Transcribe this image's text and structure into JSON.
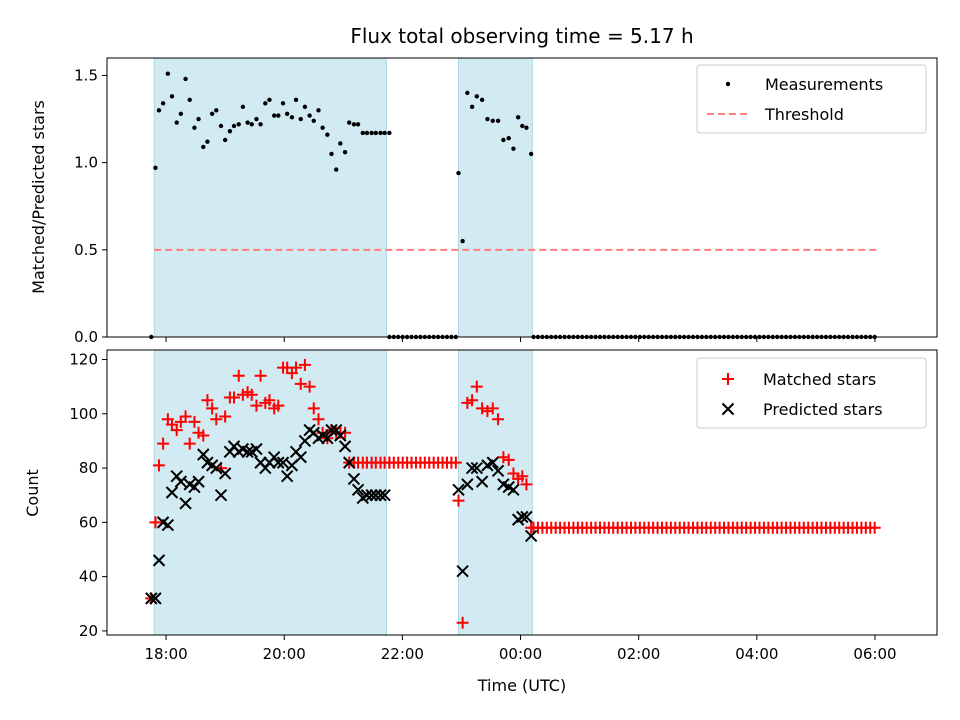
{
  "chart_data": {
    "title": "Flux total observing time = 5.17 h",
    "xlabel": "Time (UTC)",
    "x_unit": "hours since 17:00 UTC",
    "xlim": [
      17.0,
      31.05
    ],
    "xticks": [
      {
        "value": 18,
        "label": "18:00"
      },
      {
        "value": 20,
        "label": "20:00"
      },
      {
        "value": 22,
        "label": "22:00"
      },
      {
        "value": 24,
        "label": "00:00"
      },
      {
        "value": 26,
        "label": "02:00"
      },
      {
        "value": 28,
        "label": "04:00"
      },
      {
        "value": 30,
        "label": "06:00"
      }
    ],
    "observing_windows": [
      {
        "start": 17.8,
        "end": 21.73
      },
      {
        "start": 22.95,
        "end": 24.2
      }
    ],
    "window_color": "#add8e6",
    "panels": [
      {
        "id": "ratio",
        "type": "scatter",
        "ylabel": "Matched/Predicted stars",
        "ylim": [
          0,
          1.6
        ],
        "yticks": [
          {
            "value": 0,
            "label": "0.0"
          },
          {
            "value": 0.5,
            "label": "0.5"
          },
          {
            "value": 1.0,
            "label": "1.0"
          },
          {
            "value": 1.5,
            "label": "1.5"
          }
        ],
        "legend_position": "top-right",
        "threshold": {
          "name": "Threshold",
          "value": 0.5,
          "x_range": [
            17.8,
            30.03
          ],
          "color": "#ff7f7f"
        },
        "series": [
          {
            "name": "Measurements",
            "marker": "dot",
            "color": "#000000",
            "segments": [
              {
                "x": [
                  17.75,
                  17.82,
                  17.88,
                  17.95,
                  18.03,
                  18.1,
                  18.18,
                  18.25,
                  18.33,
                  18.4,
                  18.48,
                  18.55,
                  18.63,
                  18.7,
                  18.78,
                  18.85,
                  18.93,
                  19.0,
                  19.08,
                  19.15,
                  19.23,
                  19.3,
                  19.38,
                  19.45,
                  19.53,
                  19.6,
                  19.68,
                  19.75,
                  19.83,
                  19.9,
                  19.98,
                  20.05,
                  20.13,
                  20.2,
                  20.28,
                  20.35,
                  20.43,
                  20.5,
                  20.58,
                  20.65,
                  20.73,
                  20.8,
                  20.88,
                  20.95,
                  21.03,
                  21.1,
                  21.18,
                  21.25,
                  21.33,
                  21.4,
                  21.48,
                  21.55,
                  21.63,
                  21.7,
                  21.78
                ],
                "y": [
                  0,
                  0.97,
                  1.3,
                  1.34,
                  1.51,
                  1.38,
                  1.23,
                  1.28,
                  1.48,
                  1.36,
                  1.2,
                  1.25,
                  1.09,
                  1.12,
                  1.28,
                  1.3,
                  1.21,
                  1.13,
                  1.18,
                  1.21,
                  1.22,
                  1.32,
                  1.23,
                  1.22,
                  1.25,
                  1.22,
                  1.34,
                  1.36,
                  1.27,
                  1.27,
                  1.34,
                  1.28,
                  1.26,
                  1.36,
                  1.25,
                  1.32,
                  1.27,
                  1.24,
                  1.3,
                  1.2,
                  1.16,
                  1.05,
                  0.96,
                  1.11,
                  1.06,
                  1.23,
                  1.22,
                  1.22,
                  1.17,
                  1.17,
                  1.17,
                  1.17,
                  1.17,
                  1.17,
                  1.17
                ]
              },
              {
                "x": [
                  22.95,
                  23.02,
                  23.1,
                  23.18,
                  23.26,
                  23.35,
                  23.44,
                  23.53,
                  23.62,
                  23.71,
                  23.8,
                  23.88,
                  23.96,
                  24.03,
                  24.1,
                  24.18
                ],
                "y": [
                  0.94,
                  0.55,
                  1.4,
                  1.32,
                  1.38,
                  1.36,
                  1.25,
                  1.24,
                  1.24,
                  1.13,
                  1.14,
                  1.08,
                  1.26,
                  1.21,
                  1.2,
                  1.05
                ]
              }
            ],
            "zero_runs": [
              {
                "start": 21.78,
                "end": 22.92,
                "step": 0.075
              },
              {
                "start": 24.22,
                "end": 30.03,
                "step": 0.075
              }
            ]
          }
        ]
      },
      {
        "id": "counts",
        "type": "scatter",
        "ylabel": "Count",
        "ylim": [
          18.5,
          123.5
        ],
        "yticks": [
          {
            "value": 20,
            "label": "20"
          },
          {
            "value": 40,
            "label": "40"
          },
          {
            "value": 60,
            "label": "60"
          },
          {
            "value": 80,
            "label": "80"
          },
          {
            "value": 100,
            "label": "100"
          },
          {
            "value": 120,
            "label": "120"
          }
        ],
        "legend_position": "top-right",
        "series": [
          {
            "name": "Matched stars",
            "marker": "plus",
            "color": "#ff0000",
            "segments": [
              {
                "x": [
                  17.75,
                  17.82,
                  17.88,
                  17.95,
                  18.03,
                  18.1,
                  18.18,
                  18.25,
                  18.33,
                  18.4,
                  18.48,
                  18.55,
                  18.63,
                  18.7,
                  18.78,
                  18.85,
                  18.93,
                  19.0,
                  19.08,
                  19.15,
                  19.23,
                  19.3,
                  19.38,
                  19.45,
                  19.53,
                  19.6,
                  19.68,
                  19.75,
                  19.83,
                  19.9,
                  19.98,
                  20.05,
                  20.13,
                  20.2,
                  20.28,
                  20.35,
                  20.43,
                  20.5,
                  20.58,
                  20.65,
                  20.73,
                  20.8,
                  20.88,
                  20.95,
                  21.03,
                  21.1,
                  21.18,
                  21.25,
                  21.33,
                  21.4,
                  21.48,
                  21.55,
                  21.63,
                  21.7,
                  21.78
                ],
                "y": [
                  32,
                  60,
                  81,
                  89,
                  98,
                  96,
                  94,
                  97,
                  99,
                  89,
                  97,
                  93,
                  92,
                  105,
                  102,
                  98,
                  80,
                  99,
                  106,
                  106,
                  114,
                  107,
                  108,
                  107,
                  103,
                  114,
                  104,
                  105,
                  102,
                  103,
                  117,
                  117,
                  115,
                  117,
                  111,
                  118,
                  110,
                  102,
                  98,
                  93,
                  91,
                  94,
                  93,
                  93,
                  93,
                  82,
                  82,
                  82,
                  82,
                  82,
                  82,
                  82,
                  82,
                  82,
                  82
                ]
              },
              {
                "x": [
                  22.95,
                  23.02,
                  23.1,
                  23.18,
                  23.26,
                  23.35,
                  23.44,
                  23.53,
                  23.62,
                  23.71,
                  23.8,
                  23.88,
                  23.96,
                  24.03,
                  24.1,
                  24.18
                ],
                "y": [
                  68,
                  23,
                  104,
                  105,
                  110,
                  102,
                  101,
                  102,
                  98,
                  84,
                  83,
                  78,
                  76,
                  77,
                  74,
                  58
                ]
              }
            ],
            "constant_runs": [
              {
                "start": 21.78,
                "end": 22.92,
                "step": 0.075,
                "value": 82
              },
              {
                "start": 24.22,
                "end": 30.03,
                "step": 0.075,
                "value": 58
              }
            ]
          },
          {
            "name": "Predicted stars",
            "marker": "x",
            "color": "#000000",
            "segments": [
              {
                "x": [
                  17.75,
                  17.82,
                  17.88,
                  17.95,
                  18.03,
                  18.1,
                  18.18,
                  18.25,
                  18.33,
                  18.4,
                  18.48,
                  18.55,
                  18.63,
                  18.7,
                  18.78,
                  18.85,
                  18.93,
                  19.0,
                  19.08,
                  19.15,
                  19.23,
                  19.3,
                  19.38,
                  19.45,
                  19.53,
                  19.6,
                  19.68,
                  19.75,
                  19.83,
                  19.9,
                  19.98,
                  20.05,
                  20.13,
                  20.2,
                  20.28,
                  20.35,
                  20.43,
                  20.5,
                  20.58,
                  20.65,
                  20.73,
                  20.8,
                  20.88,
                  20.95,
                  21.03,
                  21.1,
                  21.18,
                  21.25,
                  21.33,
                  21.4,
                  21.48,
                  21.55,
                  21.63,
                  21.7
                ],
                "y": [
                  32,
                  32,
                  46,
                  60,
                  59,
                  71,
                  77,
                  75,
                  67,
                  74,
                  73,
                  75,
                  85,
                  82,
                  81,
                  80,
                  70,
                  78,
                  86,
                  88,
                  86,
                  87,
                  86,
                  86,
                  87,
                  82,
                  80,
                  82,
                  84,
                  82,
                  82,
                  77,
                  81,
                  86,
                  84,
                  90,
                  94,
                  93,
                  91,
                  92,
                  91,
                  94,
                  94,
                  92,
                  88,
                  82,
                  76,
                  72,
                  69,
                  70,
                  70,
                  70,
                  70,
                  70
                ]
              },
              {
                "x": [
                  22.95,
                  23.02,
                  23.1,
                  23.18,
                  23.26,
                  23.35,
                  23.44,
                  23.53,
                  23.62,
                  23.71,
                  23.8,
                  23.88,
                  23.96,
                  24.03,
                  24.1,
                  24.18
                ],
                "y": [
                  72,
                  42,
                  74,
                  80,
                  80,
                  75,
                  81,
                  82,
                  79,
                  74,
                  73,
                  72,
                  61,
                  62,
                  62,
                  55
                ]
              }
            ]
          }
        ]
      }
    ]
  }
}
